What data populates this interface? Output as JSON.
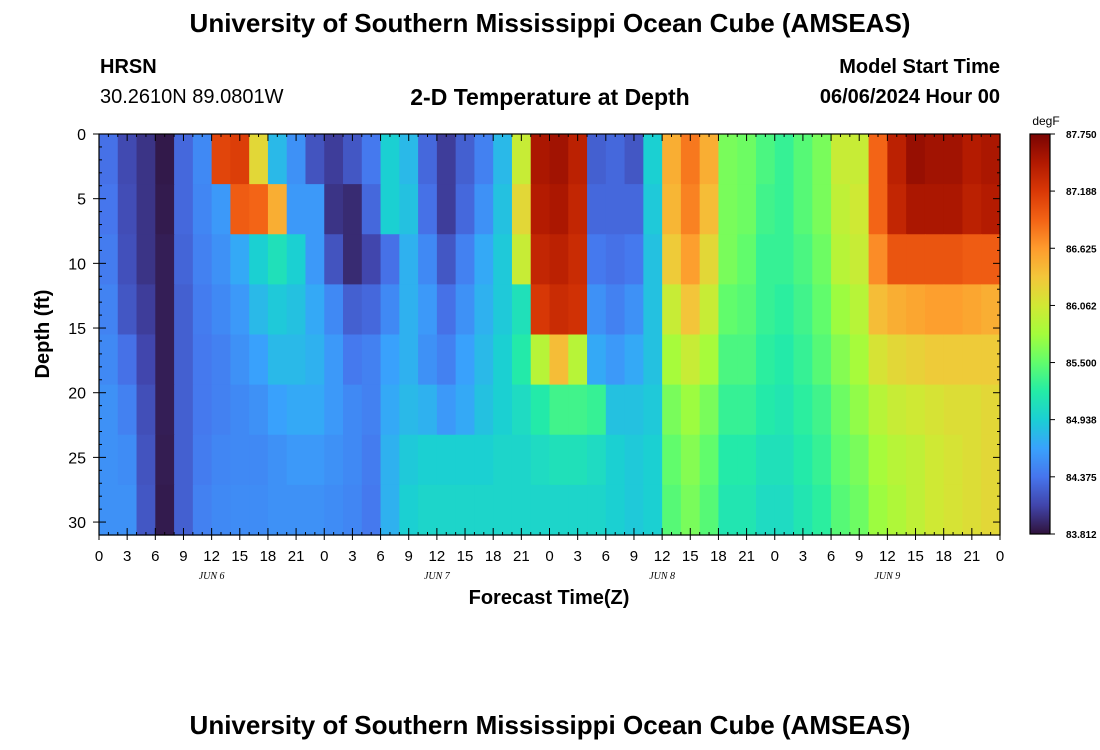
{
  "header": {
    "title": "University of Southern Mississippi Ocean Cube (AMSEAS)",
    "station": "HRSN",
    "coords": "30.2610N  89.0801W",
    "subtitle": "2-D Temperature at Depth",
    "start_label": "Model Start Time",
    "start_value": "06/06/2024 Hour 00"
  },
  "footer": {
    "title": "University of Southern Mississippi Ocean Cube (AMSEAS)"
  },
  "colors": {
    "background": "#ffffff",
    "axis": "#000000",
    "colormap": [
      "#30123b",
      "#4145ab",
      "#4675ed",
      "#39a2fc",
      "#1bcfd4",
      "#24eca6",
      "#61fc6c",
      "#a4fc3b",
      "#d1e834",
      "#f3c63a",
      "#fe9b2d",
      "#f36315",
      "#d93806",
      "#b11901",
      "#7a0403"
    ]
  },
  "chart_data": {
    "type": "heatmap",
    "title": "2-D Temperature at Depth",
    "xlabel": "Forecast Time(Z)",
    "ylabel": "Depth (ft)",
    "x_hours": [
      0,
      96
    ],
    "ylim": [
      0,
      31
    ],
    "y_ticks": [
      0,
      5,
      10,
      15,
      20,
      25,
      30
    ],
    "x_tick_labels": [
      "0",
      "3",
      "6",
      "9",
      "12",
      "15",
      "18",
      "21",
      "0",
      "3",
      "6",
      "9",
      "12",
      "15",
      "18",
      "21",
      "0",
      "3",
      "6",
      "9",
      "12",
      "15",
      "18",
      "21",
      "0",
      "3",
      "6",
      "9",
      "12",
      "15",
      "18",
      "21",
      "0"
    ],
    "day_labels": [
      {
        "label": "JUN 6",
        "hour": 12
      },
      {
        "label": "JUN 7",
        "hour": 36
      },
      {
        "label": "JUN 8",
        "hour": 60
      },
      {
        "label": "JUN 9",
        "hour": 84
      }
    ],
    "colorbar": {
      "unit": "degF",
      "min": 83.812,
      "max": 87.75,
      "tick_labels": [
        "87.750",
        "87.188",
        "86.625",
        "86.062",
        "85.500",
        "84.938",
        "84.375",
        "83.812"
      ]
    },
    "surface_temps": [
      84.35,
      84.1,
      84.25,
      84.0,
      83.85,
      84.3,
      87.0,
      87.2,
      84.5,
      84.05,
      84.6,
      87.5,
      87.6,
      84.2,
      85.0,
      86.8,
      85.5,
      85.3,
      85.6,
      86.2,
      85.1,
      87.0,
      87.6,
      87.55
    ],
    "bottom_temps": [
      84.55,
      84.6,
      84.15,
      83.85,
      83.9,
      84.5,
      84.6,
      84.55,
      84.4,
      84.2,
      84.8,
      85.0,
      85.0,
      84.75,
      84.9,
      86.3,
      86.3,
      85.4,
      85.1,
      85.0,
      85.2,
      85.7,
      86.3,
      86.4
    ],
    "temp_grid": [
      [
        84.35,
        84.12,
        84.0,
        83.85,
        84.3,
        84.5,
        87.1,
        87.15,
        86.2,
        84.8,
        84.55,
        84.18,
        84.05,
        84.2,
        84.4,
        84.95,
        84.8,
        84.3,
        84.05,
        84.25,
        84.45,
        84.8,
        86.0,
        87.5,
        87.55,
        87.4,
        84.25,
        84.3,
        84.2,
        84.95,
        86.5,
        86.8,
        86.5,
        85.6,
        85.55,
        85.4,
        85.3,
        85.45,
        85.6,
        86.0,
        86.0,
        86.9,
        87.4,
        87.6,
        87.55,
        87.55,
        87.45,
        87.5
      ],
      [
        84.38,
        84.14,
        84.0,
        83.86,
        84.3,
        84.48,
        84.6,
        86.95,
        86.9,
        86.5,
        84.6,
        84.6,
        84.0,
        83.95,
        84.3,
        84.95,
        84.85,
        84.35,
        84.05,
        84.3,
        84.55,
        84.85,
        86.2,
        87.45,
        87.5,
        87.35,
        84.3,
        84.3,
        84.3,
        84.9,
        86.45,
        86.75,
        86.4,
        85.6,
        85.55,
        85.35,
        85.3,
        85.45,
        85.6,
        85.95,
        86.05,
        86.9,
        87.35,
        87.5,
        87.5,
        87.5,
        87.4,
        87.45
      ],
      [
        84.42,
        84.16,
        84.0,
        83.88,
        84.28,
        84.45,
        84.55,
        84.7,
        84.95,
        85.1,
        84.95,
        84.6,
        84.18,
        83.95,
        84.1,
        84.35,
        84.75,
        84.5,
        84.2,
        84.45,
        84.7,
        84.9,
        86.0,
        87.35,
        87.4,
        87.3,
        84.4,
        84.35,
        84.4,
        84.85,
        86.3,
        86.6,
        86.2,
        85.6,
        85.5,
        85.3,
        85.3,
        85.4,
        85.55,
        85.9,
        86.0,
        86.7,
        87.0,
        87.0,
        87.0,
        87.0,
        86.95,
        86.95
      ],
      [
        84.46,
        84.2,
        84.05,
        83.88,
        84.25,
        84.42,
        84.5,
        84.6,
        84.8,
        84.9,
        84.85,
        84.7,
        84.5,
        84.25,
        84.3,
        84.5,
        84.75,
        84.6,
        84.35,
        84.55,
        84.75,
        84.9,
        85.1,
        87.2,
        87.3,
        87.25,
        84.55,
        84.45,
        84.55,
        84.85,
        86.0,
        86.35,
        86.0,
        85.5,
        85.45,
        85.3,
        85.25,
        85.35,
        85.5,
        85.75,
        85.9,
        86.4,
        86.5,
        86.55,
        86.6,
        86.6,
        86.55,
        86.5
      ],
      [
        84.5,
        84.35,
        84.1,
        83.88,
        84.25,
        84.4,
        84.45,
        84.55,
        84.65,
        84.8,
        84.8,
        84.75,
        84.6,
        84.4,
        84.45,
        84.65,
        84.75,
        84.55,
        84.45,
        84.65,
        84.8,
        84.95,
        85.2,
        85.9,
        86.4,
        85.9,
        84.7,
        84.6,
        84.7,
        84.85,
        85.8,
        86.0,
        85.8,
        85.4,
        85.4,
        85.25,
        85.2,
        85.3,
        85.45,
        85.65,
        85.8,
        86.1,
        86.2,
        86.25,
        86.3,
        86.3,
        86.3,
        86.3
      ],
      [
        84.55,
        84.45,
        84.15,
        83.88,
        84.25,
        84.4,
        84.45,
        84.5,
        84.55,
        84.65,
        84.7,
        84.7,
        84.6,
        84.5,
        84.45,
        84.7,
        84.8,
        84.75,
        84.6,
        84.7,
        84.85,
        84.95,
        85.05,
        85.2,
        85.35,
        85.35,
        85.3,
        84.85,
        84.85,
        84.9,
        85.6,
        85.75,
        85.6,
        85.3,
        85.3,
        85.2,
        85.15,
        85.25,
        85.35,
        85.55,
        85.7,
        85.9,
        86.0,
        86.05,
        86.1,
        86.15,
        86.15,
        86.2
      ],
      [
        84.55,
        84.52,
        84.18,
        83.87,
        84.25,
        84.42,
        84.48,
        84.5,
        84.5,
        84.55,
        84.6,
        84.6,
        84.55,
        84.5,
        84.42,
        84.75,
        84.9,
        84.95,
        84.95,
        84.95,
        84.95,
        85.0,
        85.0,
        85.05,
        85.1,
        85.1,
        85.05,
        84.95,
        84.9,
        84.95,
        85.5,
        85.65,
        85.5,
        85.2,
        85.2,
        85.1,
        85.1,
        85.2,
        85.3,
        85.5,
        85.6,
        85.8,
        85.9,
        85.95,
        86.05,
        86.1,
        86.15,
        86.2
      ],
      [
        84.55,
        84.55,
        84.2,
        83.86,
        84.25,
        84.45,
        84.5,
        84.52,
        84.52,
        84.55,
        84.55,
        84.55,
        84.52,
        84.48,
        84.4,
        84.75,
        84.95,
        85.0,
        85.0,
        85.0,
        85.0,
        85.0,
        85.0,
        85.0,
        85.0,
        85.0,
        85.0,
        84.95,
        84.9,
        84.95,
        85.45,
        85.6,
        85.45,
        85.15,
        85.15,
        85.05,
        85.05,
        85.15,
        85.25,
        85.45,
        85.55,
        85.75,
        85.85,
        85.95,
        86.05,
        86.1,
        86.15,
        86.2
      ]
    ]
  }
}
